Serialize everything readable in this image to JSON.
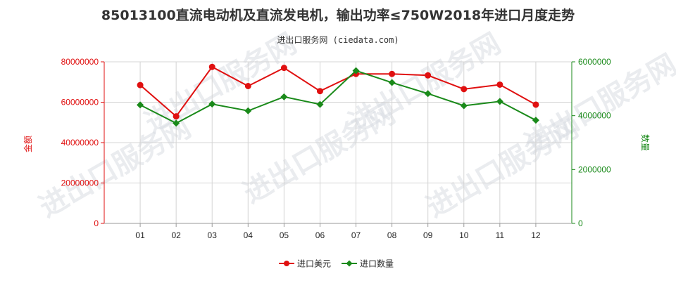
{
  "chart_data": {
    "type": "line",
    "title": "85013100直流电动机及直流发电机，输出功率≤750W2018年进口月度走势",
    "subtitle": "进出口服务网 (ciedata.com)",
    "watermark": "进出口服务网",
    "categories": [
      "01",
      "02",
      "03",
      "04",
      "05",
      "06",
      "07",
      "08",
      "09",
      "10",
      "11",
      "12"
    ],
    "y_left": {
      "label": "金额",
      "ylim": [
        0,
        80000000
      ],
      "ticks": [
        "0",
        "20000000",
        "40000000",
        "60000000",
        "80000000"
      ]
    },
    "y_right": {
      "label": "数量",
      "ylim": [
        0,
        6000000
      ],
      "ticks": [
        "0",
        "2000000",
        "4000000",
        "6000000"
      ]
    },
    "series": [
      {
        "name": "进口美元",
        "axis": "left",
        "color": "#e01010",
        "values": [
          68500000,
          53000000,
          77500000,
          68000000,
          77000000,
          65500000,
          74000000,
          74000000,
          73300000,
          66500000,
          68700000,
          58800000
        ]
      },
      {
        "name": "进口数量",
        "axis": "right",
        "color": "#1a8a1a",
        "values": [
          4400000,
          3720000,
          4430000,
          4180000,
          4700000,
          4420000,
          5670000,
          5230000,
          4820000,
          4370000,
          4530000,
          3830000
        ]
      }
    ],
    "grid": true,
    "legend_position": "bottom-center"
  }
}
